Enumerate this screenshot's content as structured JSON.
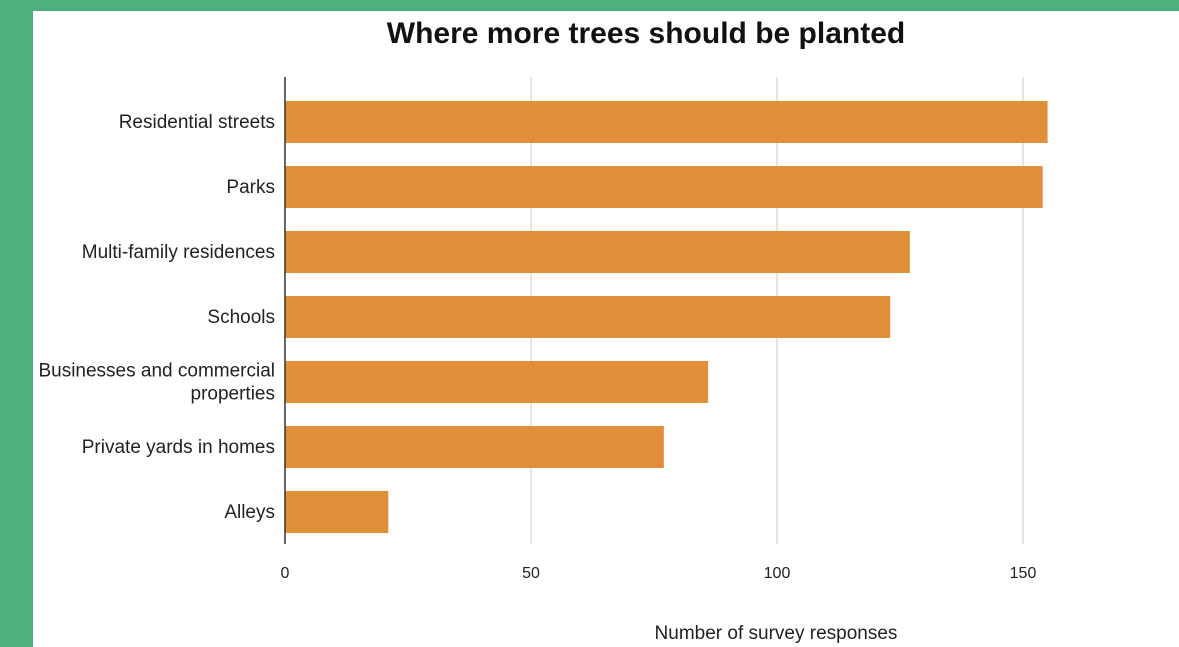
{
  "colors": {
    "background": "#4caf7d",
    "panel": "#ffffff",
    "bar": "#e28f3a",
    "grid": "#c8c8c8",
    "axis": "#333333"
  },
  "chart_data": {
    "type": "bar",
    "orientation": "horizontal",
    "title": "Where more trees should be planted",
    "xlabel": "Number of survey responses",
    "ylabel": "",
    "categories": [
      [
        "Residential streets"
      ],
      [
        "Parks"
      ],
      [
        "Multi-family residences"
      ],
      [
        "Schools"
      ],
      [
        "Businesses and commercial",
        "properties"
      ],
      [
        "Private yards in homes"
      ],
      [
        "Alleys"
      ]
    ],
    "values": [
      155,
      154,
      127,
      123,
      86,
      77,
      21
    ],
    "xlim": [
      0,
      175
    ],
    "xticks": [
      0,
      50,
      100,
      150
    ],
    "grid": true,
    "legend": "none"
  }
}
